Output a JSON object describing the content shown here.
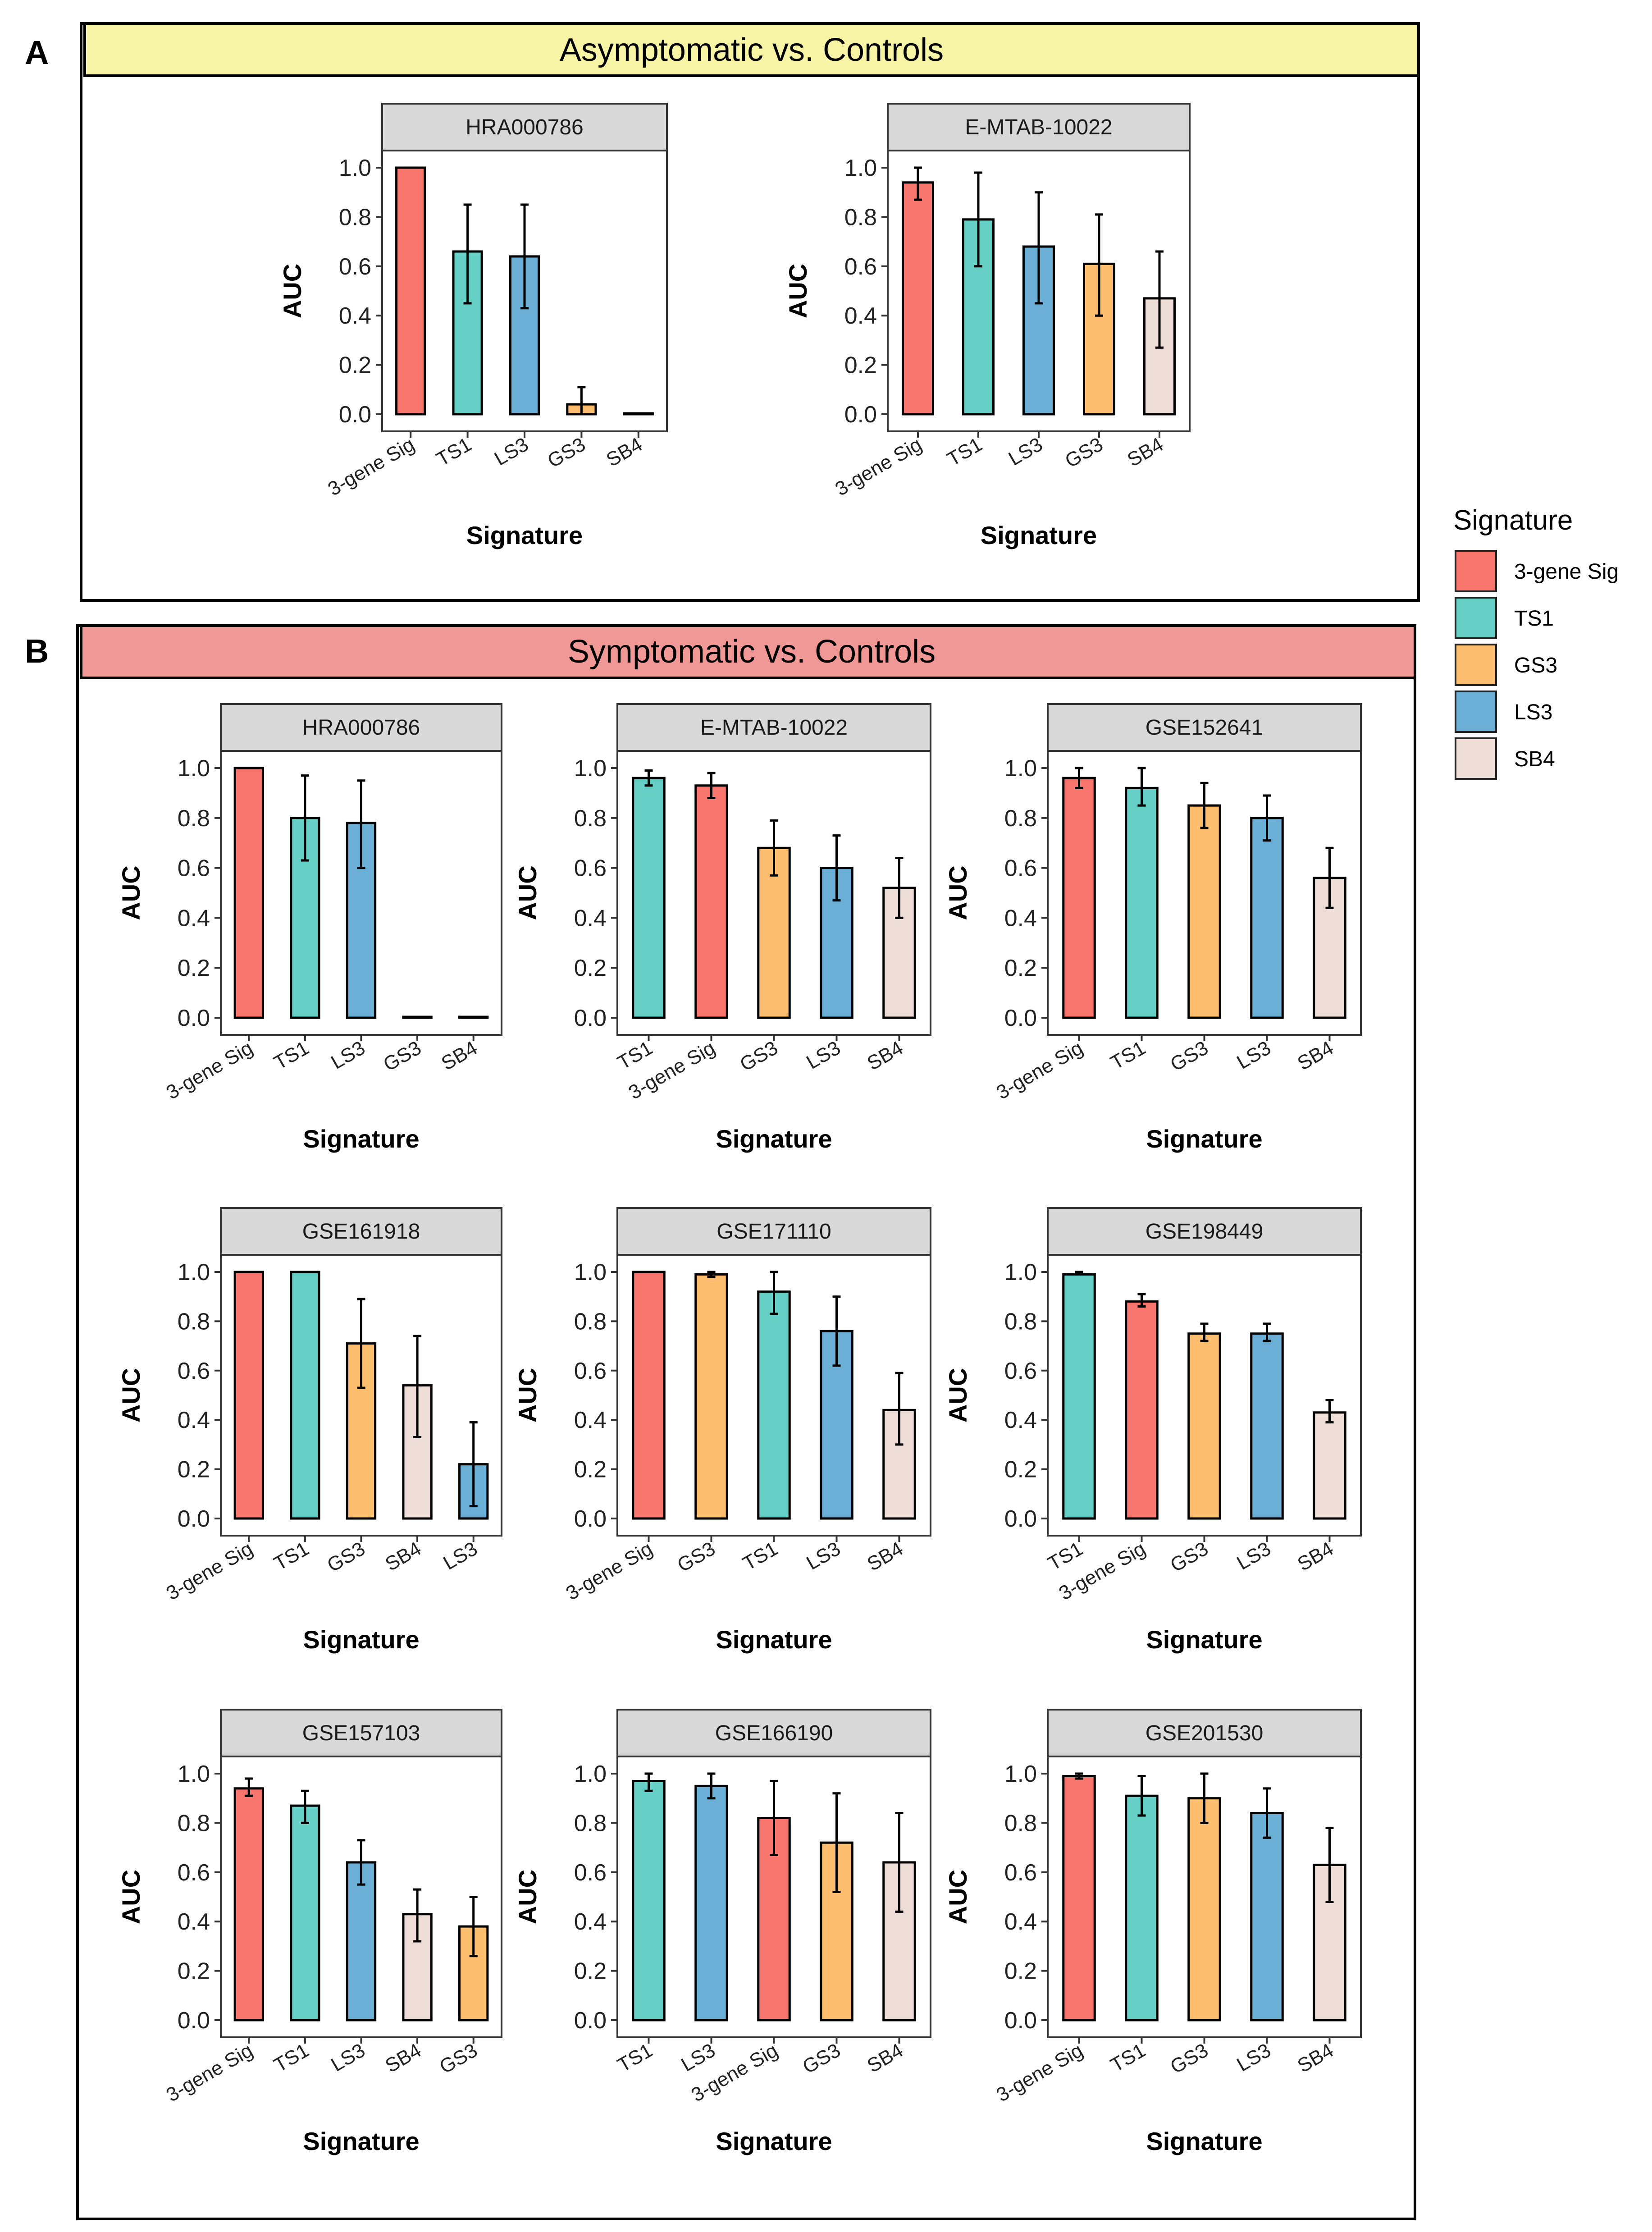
{
  "figure": {
    "section_a": {
      "letter": "A",
      "title": "Asymptomatic vs. Controls",
      "color": "#F8F4A6"
    },
    "section_b": {
      "letter": "B",
      "title": "Symptomatic vs. Controls",
      "color": "#F09896"
    }
  },
  "legend": {
    "title": "Signature",
    "items": [
      {
        "label": "3-gene Sig",
        "color": "#F8766D"
      },
      {
        "label": "TS1",
        "color": "#66CFC6"
      },
      {
        "label": "GS3",
        "color": "#FDBF6F"
      },
      {
        "label": "LS3",
        "color": "#6BAED6"
      },
      {
        "label": "SB4",
        "color": "#EEDDD6"
      }
    ]
  },
  "colors": {
    "3-gene Sig": "#F8766D",
    "TS1": "#66CFC6",
    "GS3": "#FDBF6F",
    "LS3": "#6BAED6",
    "SB4": "#EEDDD6",
    "strip_bg": "#D9D9D9"
  },
  "chart_data": [
    {
      "section": "A",
      "type": "bar",
      "title": "HRA000786",
      "categories": [
        "3-gene Sig",
        "TS1",
        "LS3",
        "GS3",
        "SB4"
      ],
      "values": [
        1.0,
        0.66,
        0.64,
        0.04,
        0.0
      ],
      "err_low": [
        1.0,
        0.45,
        0.43,
        0.0,
        0.0
      ],
      "err_high": [
        1.0,
        0.85,
        0.85,
        0.11,
        0.0
      ],
      "xlabel": "Signature",
      "ylabel": "AUC",
      "ylim": [
        0,
        1.0
      ],
      "yticks": [
        "0.0",
        "0.2",
        "0.4",
        "0.6",
        "0.8",
        "1.0"
      ]
    },
    {
      "section": "A",
      "type": "bar",
      "title": "E-MTAB-10022",
      "categories": [
        "3-gene Sig",
        "TS1",
        "LS3",
        "GS3",
        "SB4"
      ],
      "values": [
        0.94,
        0.79,
        0.68,
        0.61,
        0.47
      ],
      "err_low": [
        0.87,
        0.6,
        0.45,
        0.4,
        0.27
      ],
      "err_high": [
        1.0,
        0.98,
        0.9,
        0.81,
        0.66
      ],
      "xlabel": "Signature",
      "ylabel": "AUC",
      "ylim": [
        0,
        1.0
      ],
      "yticks": [
        "0.0",
        "0.2",
        "0.4",
        "0.6",
        "0.8",
        "1.0"
      ]
    },
    {
      "section": "B",
      "type": "bar",
      "title": "HRA000786",
      "categories": [
        "3-gene Sig",
        "TS1",
        "LS3",
        "GS3",
        "SB4"
      ],
      "values": [
        1.0,
        0.8,
        0.78,
        0.0,
        0.0
      ],
      "err_low": [
        1.0,
        0.63,
        0.6,
        0.0,
        0.0
      ],
      "err_high": [
        1.0,
        0.97,
        0.95,
        0.0,
        0.0
      ],
      "xlabel": "Signature",
      "ylabel": "AUC",
      "ylim": [
        0,
        1.0
      ],
      "yticks": [
        "0.0",
        "0.2",
        "0.4",
        "0.6",
        "0.8",
        "1.0"
      ]
    },
    {
      "section": "B",
      "type": "bar",
      "title": "E-MTAB-10022",
      "categories": [
        "TS1",
        "3-gene Sig",
        "GS3",
        "LS3",
        "SB4"
      ],
      "values": [
        0.96,
        0.93,
        0.68,
        0.6,
        0.52
      ],
      "err_low": [
        0.93,
        0.88,
        0.57,
        0.47,
        0.4
      ],
      "err_high": [
        0.99,
        0.98,
        0.79,
        0.73,
        0.64
      ],
      "xlabel": "Signature",
      "ylabel": "AUC",
      "ylim": [
        0,
        1.0
      ],
      "yticks": [
        "0.0",
        "0.2",
        "0.4",
        "0.6",
        "0.8",
        "1.0"
      ]
    },
    {
      "section": "B",
      "type": "bar",
      "title": "GSE152641",
      "categories": [
        "3-gene Sig",
        "TS1",
        "GS3",
        "LS3",
        "SB4"
      ],
      "values": [
        0.96,
        0.92,
        0.85,
        0.8,
        0.56
      ],
      "err_low": [
        0.92,
        0.85,
        0.76,
        0.71,
        0.44
      ],
      "err_high": [
        1.0,
        1.0,
        0.94,
        0.89,
        0.68
      ],
      "xlabel": "Signature",
      "ylabel": "AUC",
      "ylim": [
        0,
        1.0
      ],
      "yticks": [
        "0.0",
        "0.2",
        "0.4",
        "0.6",
        "0.8",
        "1.0"
      ]
    },
    {
      "section": "B",
      "type": "bar",
      "title": "GSE161918",
      "categories": [
        "3-gene Sig",
        "TS1",
        "GS3",
        "SB4",
        "LS3"
      ],
      "values": [
        1.0,
        1.0,
        0.71,
        0.54,
        0.22
      ],
      "err_low": [
        1.0,
        1.0,
        0.53,
        0.33,
        0.05
      ],
      "err_high": [
        1.0,
        1.0,
        0.89,
        0.74,
        0.39
      ],
      "xlabel": "Signature",
      "ylabel": "AUC",
      "ylim": [
        0,
        1.0
      ],
      "yticks": [
        "0.0",
        "0.2",
        "0.4",
        "0.6",
        "0.8",
        "1.0"
      ]
    },
    {
      "section": "B",
      "type": "bar",
      "title": "GSE171110",
      "categories": [
        "3-gene Sig",
        "GS3",
        "TS1",
        "LS3",
        "SB4"
      ],
      "values": [
        1.0,
        0.99,
        0.92,
        0.76,
        0.44
      ],
      "err_low": [
        1.0,
        0.98,
        0.83,
        0.62,
        0.3
      ],
      "err_high": [
        1.0,
        1.0,
        1.0,
        0.9,
        0.59
      ],
      "xlabel": "Signature",
      "ylabel": "AUC",
      "ylim": [
        0,
        1.0
      ],
      "yticks": [
        "0.0",
        "0.2",
        "0.4",
        "0.6",
        "0.8",
        "1.0"
      ]
    },
    {
      "section": "B",
      "type": "bar",
      "title": "GSE198449",
      "categories": [
        "TS1",
        "3-gene Sig",
        "GS3",
        "LS3",
        "SB4"
      ],
      "values": [
        0.99,
        0.88,
        0.75,
        0.75,
        0.43
      ],
      "err_low": [
        0.99,
        0.86,
        0.72,
        0.72,
        0.39
      ],
      "err_high": [
        1.0,
        0.91,
        0.79,
        0.79,
        0.48
      ],
      "xlabel": "Signature",
      "ylabel": "AUC",
      "ylim": [
        0,
        1.0
      ],
      "yticks": [
        "0.0",
        "0.2",
        "0.4",
        "0.6",
        "0.8",
        "1.0"
      ]
    },
    {
      "section": "B",
      "type": "bar",
      "title": "GSE157103",
      "categories": [
        "3-gene Sig",
        "TS1",
        "LS3",
        "SB4",
        "GS3"
      ],
      "values": [
        0.94,
        0.87,
        0.64,
        0.43,
        0.38
      ],
      "err_low": [
        0.91,
        0.8,
        0.55,
        0.32,
        0.26
      ],
      "err_high": [
        0.98,
        0.93,
        0.73,
        0.53,
        0.5
      ],
      "xlabel": "Signature",
      "ylabel": "AUC",
      "ylim": [
        0,
        1.0
      ],
      "yticks": [
        "0.0",
        "0.2",
        "0.4",
        "0.6",
        "0.8",
        "1.0"
      ]
    },
    {
      "section": "B",
      "type": "bar",
      "title": "GSE166190",
      "categories": [
        "TS1",
        "LS3",
        "3-gene Sig",
        "GS3",
        "SB4"
      ],
      "values": [
        0.97,
        0.95,
        0.82,
        0.72,
        0.64
      ],
      "err_low": [
        0.93,
        0.9,
        0.67,
        0.52,
        0.44
      ],
      "err_high": [
        1.0,
        1.0,
        0.97,
        0.92,
        0.84
      ],
      "xlabel": "Signature",
      "ylabel": "AUC",
      "ylim": [
        0,
        1.0
      ],
      "yticks": [
        "0.0",
        "0.2",
        "0.4",
        "0.6",
        "0.8",
        "1.0"
      ]
    },
    {
      "section": "B",
      "type": "bar",
      "title": "GSE201530",
      "categories": [
        "3-gene Sig",
        "TS1",
        "GS3",
        "LS3",
        "SB4"
      ],
      "values": [
        0.99,
        0.91,
        0.9,
        0.84,
        0.63
      ],
      "err_low": [
        0.98,
        0.83,
        0.8,
        0.74,
        0.48
      ],
      "err_high": [
        1.0,
        0.99,
        1.0,
        0.94,
        0.78
      ],
      "xlabel": "Signature",
      "ylabel": "AUC",
      "ylim": [
        0,
        1.0
      ],
      "yticks": [
        "0.0",
        "0.2",
        "0.4",
        "0.6",
        "0.8",
        "1.0"
      ]
    }
  ]
}
